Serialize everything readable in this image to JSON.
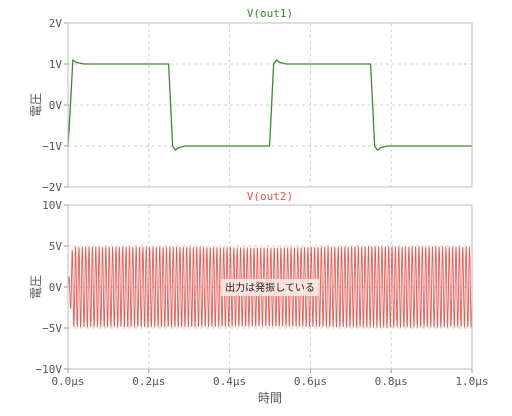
{
  "chart_data": [
    {
      "type": "line",
      "title": "V(out1)",
      "ylabel": "電圧",
      "xlabel": "",
      "xlim": [
        0,
        1.0
      ],
      "ylim": [
        -2,
        2
      ],
      "yticks": [
        {
          "value": 2,
          "label": "2V"
        },
        {
          "value": 1,
          "label": "1V"
        },
        {
          "value": 0,
          "label": "0V"
        },
        {
          "value": -1,
          "label": "−1V"
        },
        {
          "value": -2,
          "label": "−2V"
        }
      ],
      "grid": true,
      "series": [
        {
          "color": "#3a8a2e",
          "x": [
            0,
            0.005,
            0.012,
            0.02,
            0.04,
            0.249,
            0.253,
            0.259,
            0.266,
            0.274,
            0.29,
            0.499,
            0.503,
            0.509,
            0.516,
            0.524,
            0.54,
            0.749,
            0.753,
            0.759,
            0.766,
            0.774,
            0.79,
            1.0
          ],
          "y": [
            -1.0,
            -0.2,
            1.1,
            1.04,
            1.0,
            1.0,
            0.2,
            -1.0,
            -1.1,
            -1.04,
            -1.0,
            -1.0,
            -0.2,
            1.0,
            1.1,
            1.04,
            1.0,
            1.0,
            0.2,
            -1.0,
            -1.1,
            -1.04,
            -1.0,
            -1.0
          ]
        }
      ]
    },
    {
      "type": "line",
      "title": "V(out2)",
      "ylabel": "電圧",
      "xlabel": "時間",
      "xlim": [
        0,
        1.0
      ],
      "ylim": [
        -10,
        10
      ],
      "yticks": [
        {
          "value": 10,
          "label": "10V"
        },
        {
          "value": 5,
          "label": "5V"
        },
        {
          "value": 0,
          "label": "0V"
        },
        {
          "value": -5,
          "label": "−5V"
        },
        {
          "value": -10,
          "label": "−10V"
        }
      ],
      "xticks": [
        {
          "value": 0.0,
          "label": "0.0µs"
        },
        {
          "value": 0.2,
          "label": "0.2µs"
        },
        {
          "value": 0.4,
          "label": "0.4µs"
        },
        {
          "value": 0.6,
          "label": "0.6µs"
        },
        {
          "value": 0.8,
          "label": "0.8µs"
        },
        {
          "value": 1.0,
          "label": "1.0µs"
        }
      ],
      "grid": true,
      "series": [
        {
          "color": "#e8534a",
          "kind": "oscillation",
          "frequency_per_us": 120,
          "amplitude_envelope": {
            "x": [
              0,
              0.005,
              0.01,
              0.015,
              0.25,
              0.5,
              0.75,
              1.0
            ],
            "y": [
              0.5,
              2.0,
              4.5,
              4.9,
              4.9,
              4.8,
              4.95,
              4.9
            ]
          }
        }
      ],
      "annotations": [
        {
          "text": "出力は発振している",
          "x": 0.5,
          "y": 0
        }
      ]
    }
  ]
}
